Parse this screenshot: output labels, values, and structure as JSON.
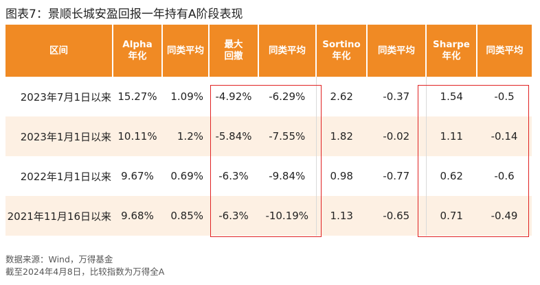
{
  "title": "图表7：景顺长城安盈回报一年持有A阶段表现",
  "headers": [
    "区间",
    "Alpha\n年化",
    "同类平均",
    "最大\n回撤",
    "同类平均",
    "Sortino\n年化",
    "同类平均",
    "Sharpe\n年化",
    "同类平均"
  ],
  "rows": [
    [
      "2023年7月1日以来",
      "15.27%",
      "1.09%",
      "-4.92%",
      "-6.29%",
      "2.62",
      "-0.37",
      "1.54",
      "-0.5"
    ],
    [
      "2023年1月1日以来",
      "10.11%",
      "1.2%",
      "-5.84%",
      "-7.55%",
      "1.82",
      "-0.02",
      "1.11",
      "-0.14"
    ],
    [
      "2022年1月1日以来",
      "9.67%",
      "0.69%",
      "-6.3%",
      "-9.84%",
      "0.98",
      "-0.77",
      "0.62",
      "-0.6"
    ],
    [
      "2021年11月16日以来",
      "9.68%",
      "0.85%",
      "-6.3%",
      "-10.19%",
      "1.13",
      "-0.65",
      "0.71",
      "-0.49"
    ]
  ],
  "footnotes": [
    "数据来源：Wind，万得基金",
    "截至2024年4月8日，比较指数为万得全A"
  ],
  "colors": {
    "header_bg": "#f08a24",
    "header_text": "#ffffff",
    "stripe": "#fdf0e3",
    "highlight_box": "#e02020"
  }
}
